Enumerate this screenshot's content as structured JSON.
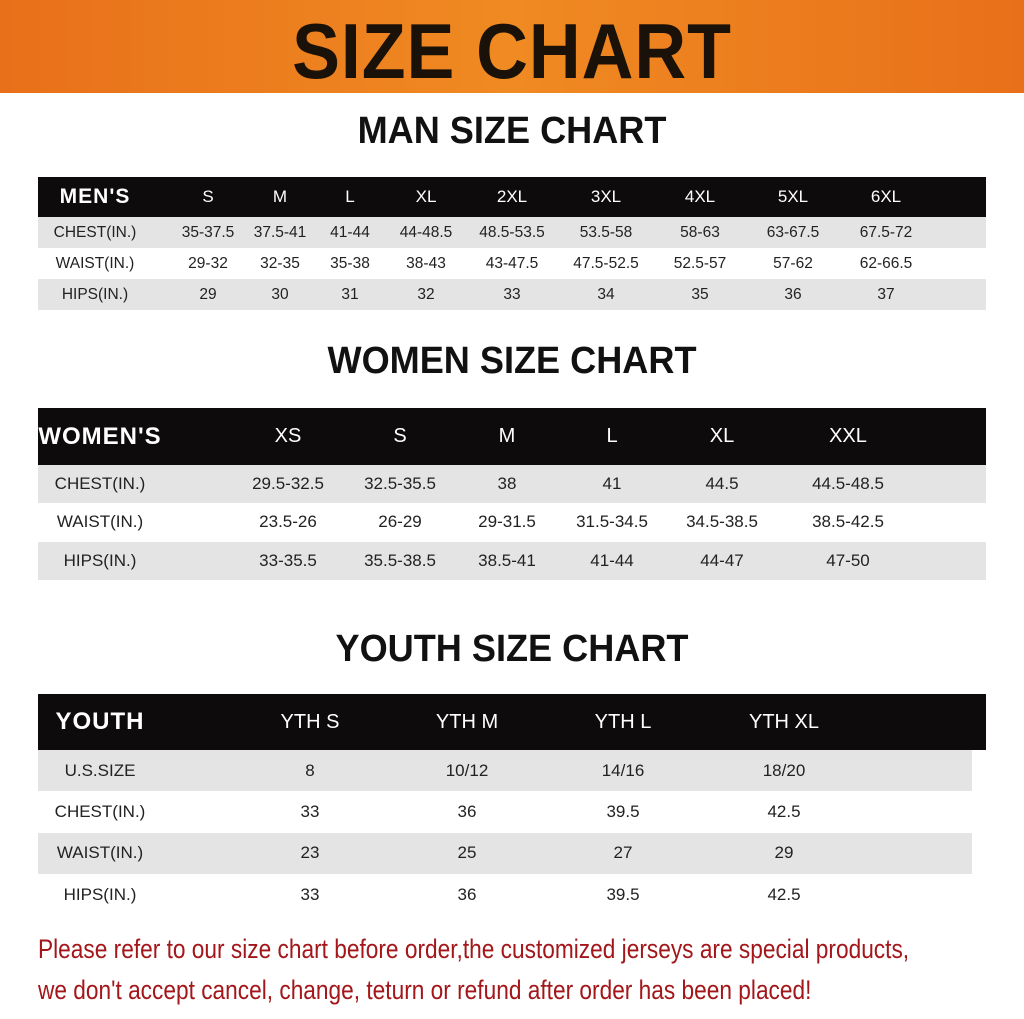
{
  "banner": {
    "title": "SIZE CHART"
  },
  "men": {
    "title": "MAN SIZE CHART",
    "header": [
      "MEN'S",
      "S",
      "M",
      "L",
      "XL",
      "2XL",
      "3XL",
      "4XL",
      "5XL",
      "6XL"
    ],
    "rows": [
      [
        "CHEST(IN.)",
        "35-37.5",
        "37.5-41",
        "41-44",
        "44-48.5",
        "48.5-53.5",
        "53.5-58",
        "58-63",
        "63-67.5",
        "67.5-72"
      ],
      [
        "WAIST(IN.)",
        "29-32",
        "32-35",
        "35-38",
        "38-43",
        "43-47.5",
        "47.5-52.5",
        "52.5-57",
        "57-62",
        "62-66.5"
      ],
      [
        "HIPS(IN.)",
        "29",
        "30",
        "31",
        "32",
        "33",
        "34",
        "35",
        "36",
        "37"
      ]
    ]
  },
  "women": {
    "title": "WOMEN SIZE CHART",
    "header": [
      "WOMEN'S",
      "XS",
      "S",
      "M",
      "L",
      "XL",
      "XXL"
    ],
    "rows": [
      [
        "CHEST(IN.)",
        "29.5-32.5",
        "32.5-35.5",
        "38",
        "41",
        "44.5",
        "44.5-48.5"
      ],
      [
        "WAIST(IN.)",
        "23.5-26",
        "26-29",
        "29-31.5",
        "31.5-34.5",
        "34.5-38.5",
        "38.5-42.5"
      ],
      [
        "HIPS(IN.)",
        "33-35.5",
        "35.5-38.5",
        "38.5-41",
        "41-44",
        "44-47",
        "47-50"
      ]
    ]
  },
  "youth": {
    "title": "YOUTH SIZE CHART",
    "header": [
      "YOUTH",
      "YTH S",
      "YTH M",
      "YTH L",
      "YTH XL"
    ],
    "rows": [
      [
        "U.S.SIZE",
        "8",
        "10/12",
        "14/16",
        "18/20"
      ],
      [
        "CHEST(IN.)",
        "33",
        "36",
        "39.5",
        "42.5"
      ],
      [
        "WAIST(IN.)",
        "23",
        "25",
        "27",
        "29"
      ],
      [
        "HIPS(IN.)",
        "33",
        "36",
        "39.5",
        "42.5"
      ]
    ]
  },
  "notice": {
    "line1": "Please refer to our size chart before order,the customized jerseys are special products,",
    "line2": "we don't accept cancel, change, teturn or refund after order has been placed!"
  },
  "colors": {
    "banner": "#f08a22",
    "header_row": "#0d0b0b",
    "stripe": "#e4e4e4",
    "notice": "#a3161a"
  }
}
